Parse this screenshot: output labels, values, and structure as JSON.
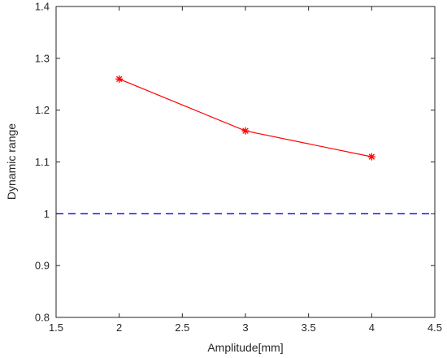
{
  "chart_data": {
    "type": "line",
    "title": "",
    "xlabel": "Amplitude[mm]",
    "ylabel": "Dynamic range",
    "xlim": [
      1.5,
      4.5
    ],
    "ylim": [
      0.8,
      1.4
    ],
    "xticks": [
      "1.5",
      "2",
      "2.5",
      "3",
      "3.5",
      "4",
      "4.5"
    ],
    "yticks": [
      "0.8",
      "0.9",
      "1",
      "1.1",
      "1.2",
      "1.3",
      "1.4"
    ],
    "grid": false,
    "series": [
      {
        "x": [
          2,
          3,
          4
        ],
        "y": [
          1.26,
          1.16,
          1.11
        ],
        "color": "#ff0000",
        "marker": "asterisk",
        "line_style": "solid"
      }
    ],
    "reference_lines": [
      {
        "y": 1.0,
        "color": "#0000ff",
        "line_style": "dashed"
      }
    ]
  }
}
